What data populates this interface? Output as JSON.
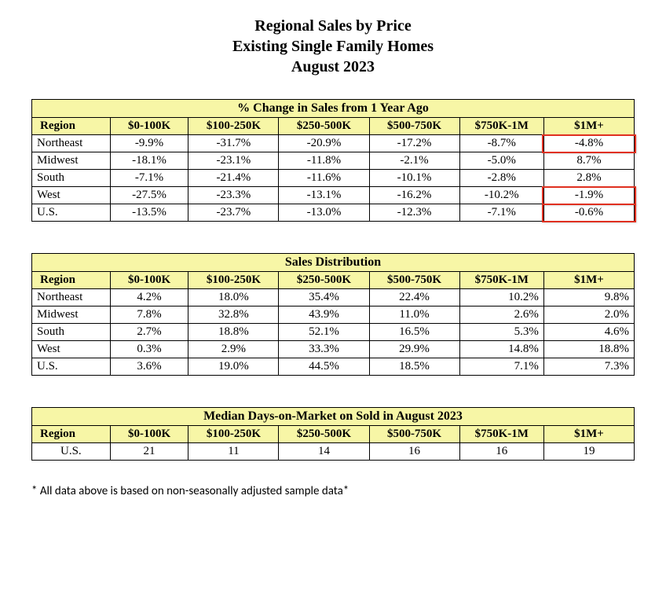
{
  "title": {
    "line1": "Regional Sales by Price",
    "line2": "Existing Single Family Homes",
    "line3": "August 2023"
  },
  "columns": {
    "region": "Region",
    "c1": "$0-100K",
    "c2": "$100-250K",
    "c3": "$250-500K",
    "c4": "$500-750K",
    "c5": "$750K-1M",
    "c6": "$1M+"
  },
  "table1": {
    "banner": "% Change in Sales from 1 Year Ago",
    "rows": [
      {
        "region": "Northeast",
        "v": [
          "-9.9%",
          "-31.7%",
          "-20.9%",
          "-17.2%",
          "-8.7%",
          "-4.8%"
        ]
      },
      {
        "region": "Midwest",
        "v": [
          "-18.1%",
          "-23.1%",
          "-11.8%",
          "-2.1%",
          "-5.0%",
          "8.7%"
        ]
      },
      {
        "region": "South",
        "v": [
          "-7.1%",
          "-21.4%",
          "-11.6%",
          "-10.1%",
          "-2.8%",
          "2.8%"
        ]
      },
      {
        "region": "West",
        "v": [
          "-27.5%",
          "-23.3%",
          "-13.1%",
          "-16.2%",
          "-10.2%",
          "-1.9%"
        ]
      },
      {
        "region": "U.S.",
        "v": [
          "-13.5%",
          "-23.7%",
          "-13.0%",
          "-12.3%",
          "-7.1%",
          "-0.6%"
        ]
      }
    ],
    "highlights": [
      {
        "row": 0,
        "col": 5
      },
      {
        "row": 3,
        "col": 5
      },
      {
        "row": 4,
        "col": 5
      }
    ],
    "highlight_color": "#e03020"
  },
  "table2": {
    "banner": "Sales Distribution",
    "rows": [
      {
        "region": "Northeast",
        "v": [
          "4.2%",
          "18.0%",
          "35.4%",
          "22.4%",
          "10.2%",
          "9.8%"
        ]
      },
      {
        "region": "Midwest",
        "v": [
          "7.8%",
          "32.8%",
          "43.9%",
          "11.0%",
          "2.6%",
          "2.0%"
        ]
      },
      {
        "region": "South",
        "v": [
          "2.7%",
          "18.8%",
          "52.1%",
          "16.5%",
          "5.3%",
          "4.6%"
        ]
      },
      {
        "region": "West",
        "v": [
          "0.3%",
          "2.9%",
          "33.3%",
          "29.9%",
          "14.8%",
          "18.8%"
        ]
      },
      {
        "region": "U.S.",
        "v": [
          "3.6%",
          "19.0%",
          "44.5%",
          "18.5%",
          "7.1%",
          "7.3%"
        ]
      }
    ]
  },
  "table3": {
    "banner": "Median Days-on-Market on Sold in August 2023",
    "rows": [
      {
        "region": "U.S.",
        "v": [
          "21",
          "11",
          "14",
          "16",
          "16",
          "19"
        ]
      }
    ]
  },
  "footnote": "* All data above is based on non-seasonally adjusted sample data*",
  "style": {
    "header_bg": "#f7f6a6",
    "border_color": "#000000",
    "col_widths_pct": [
      13,
      13,
      15,
      15,
      15,
      14,
      15
    ]
  }
}
